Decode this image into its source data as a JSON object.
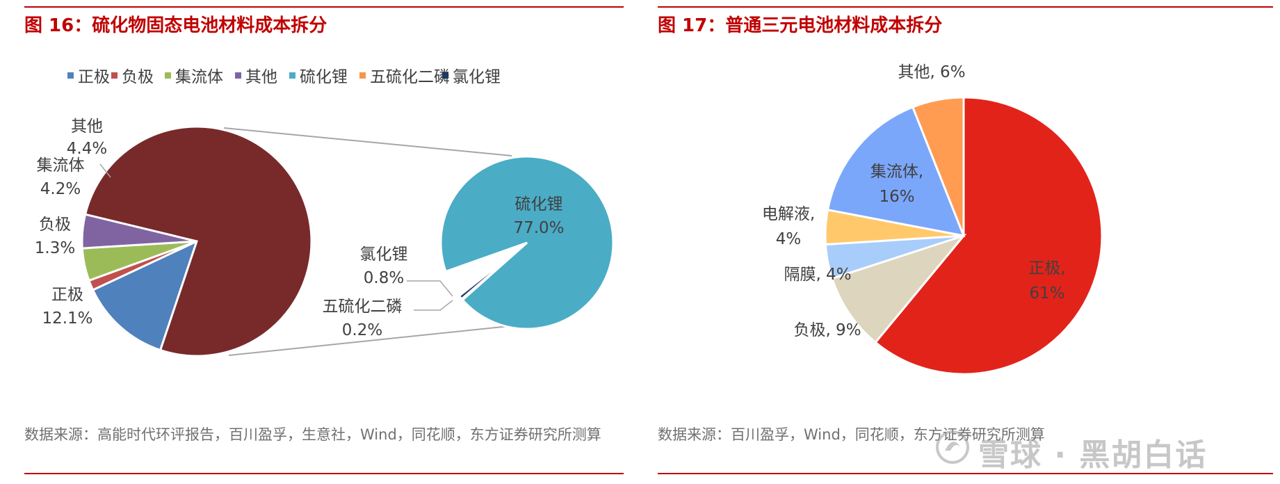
{
  "watermark": "雪球 · 黑胡白话",
  "left": {
    "fig_title": "图 16：硫化物固态电池材料成本拆分",
    "source": "数据来源：高能时代环评报告，百川盈孚，生意社，Wind，同花顺，东方证券研究所测算",
    "legend": [
      {
        "label": "正极",
        "color": "#4f81bd"
      },
      {
        "label": "负极",
        "color": "#c0504d"
      },
      {
        "label": "集流体",
        "color": "#9bbb59"
      },
      {
        "label": "其他",
        "color": "#8064a2"
      },
      {
        "label": "硫化锂",
        "color": "#4bacc6"
      },
      {
        "label": "五硫化二磷",
        "color": "#f79646"
      },
      {
        "label": "氯化锂",
        "color": "#1f3864"
      }
    ]
  },
  "right": {
    "fig_title": "图 17：普通三元电池材料成本拆分",
    "source": "数据来源：百川盈孚，Wind，同花顺，东方证券研究所测算"
  },
  "chart_data": [
    {
      "type": "pie",
      "subtype": "pie-of-pie",
      "title": "",
      "main": {
        "slices": [
          {
            "label": "正极",
            "value": 12.1,
            "display": "12.1%",
            "color": "#4f81bd"
          },
          {
            "label": "负极",
            "value": 1.3,
            "display": "1.3%",
            "color": "#c0504d"
          },
          {
            "label": "集流体",
            "value": 4.2,
            "display": "4.2%",
            "color": "#9bbb59"
          },
          {
            "label": "其他",
            "value": 4.4,
            "display": "4.4%",
            "color": "#8064a2"
          },
          {
            "label": "",
            "value": 78.0,
            "display": "",
            "color": "#782a2a"
          }
        ]
      },
      "secondary": {
        "slices": [
          {
            "label": "硫化锂",
            "value": 77.0,
            "display": "77.0%",
            "color": "#4bacc6"
          },
          {
            "label": "五硫化二磷",
            "value": 0.2,
            "display": "0.2%",
            "color": "#f79646"
          },
          {
            "label": "氯化锂",
            "value": 0.8,
            "display": "0.8%",
            "color": "#1f3864"
          }
        ]
      },
      "legend_position": "top"
    },
    {
      "type": "pie",
      "title": "",
      "slices": [
        {
          "label": "正极",
          "value": 61,
          "display": "61%",
          "color": "#e2231a"
        },
        {
          "label": "负极",
          "value": 9,
          "display": "9%",
          "color": "#ddd5bd"
        },
        {
          "label": "隔膜",
          "value": 4,
          "display": "4%",
          "color": "#a9cdfa"
        },
        {
          "label": "电解液",
          "value": 4,
          "display": "4%",
          "color": "#ffc96b"
        },
        {
          "label": "集流体",
          "value": 16,
          "display": "16%",
          "color": "#7ba7fb"
        },
        {
          "label": "其他",
          "value": 6,
          "display": "6%",
          "color": "#ff9c52"
        }
      ]
    }
  ]
}
